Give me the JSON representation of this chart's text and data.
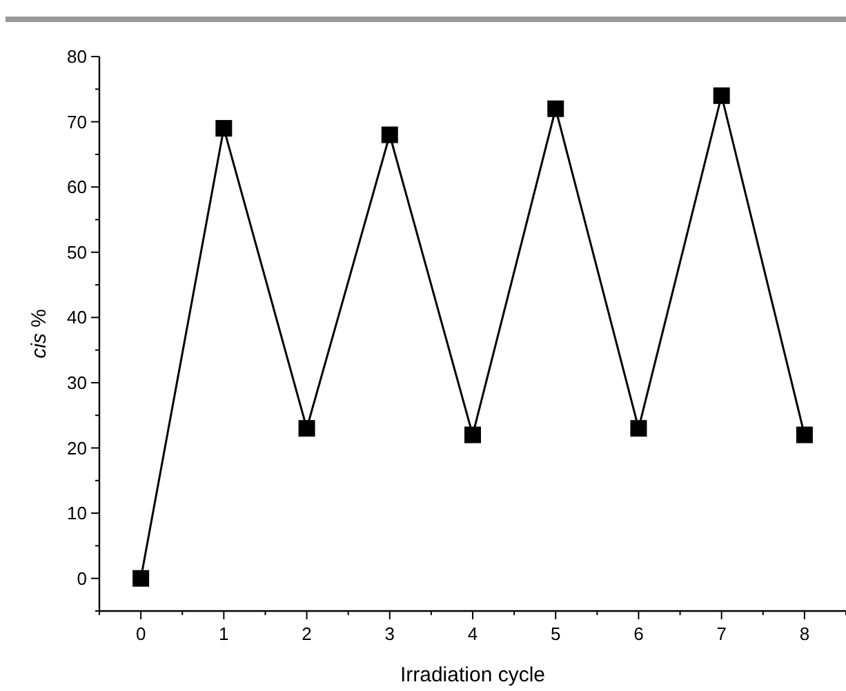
{
  "chart_data": {
    "type": "line",
    "xlabel": "Irradiation cycle",
    "ylabel": "cis %",
    "x": [
      0,
      1,
      2,
      3,
      4,
      5,
      6,
      7,
      8
    ],
    "series": [
      {
        "color": "#000000",
        "values": [
          0,
          69,
          23,
          68,
          22,
          72,
          23,
          74,
          22
        ]
      }
    ],
    "marker": "square",
    "line_style": "solid",
    "xlim": [
      -0.5,
      8.5
    ],
    "ylim": [
      -5,
      80
    ],
    "xticks": [
      {
        "value": -0.5,
        "label": null
      },
      0,
      {
        "value": 0.5,
        "label": null
      },
      1,
      {
        "value": 1.5,
        "label": null
      },
      2,
      {
        "value": 2.5,
        "label": null
      },
      3,
      {
        "value": 3.5,
        "label": null
      },
      4,
      {
        "value": 4.5,
        "label": null
      },
      5,
      {
        "value": 5.5,
        "label": null
      },
      6,
      {
        "value": 6.5,
        "label": null
      },
      7,
      {
        "value": 7.5,
        "label": null
      },
      8,
      {
        "value": 8.5,
        "label": null
      }
    ],
    "yticks": [
      {
        "value": -5,
        "label": null
      },
      0,
      {
        "value": 5,
        "label": null
      },
      10,
      {
        "value": 15,
        "label": null
      },
      20,
      {
        "value": 25,
        "label": null
      },
      30,
      {
        "value": 35,
        "label": null
      },
      40,
      {
        "value": 45,
        "label": null
      },
      50,
      {
        "value": 55,
        "label": null
      },
      60,
      {
        "value": 65,
        "label": null
      },
      70,
      {
        "value": 75,
        "label": null
      },
      80
    ]
  }
}
